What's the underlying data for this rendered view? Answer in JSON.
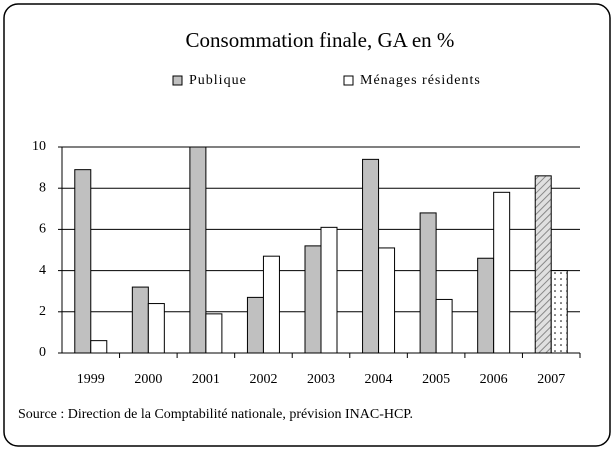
{
  "chart_data": {
    "type": "bar",
    "title": "Consommation finale, GA en %",
    "categories": [
      "1999",
      "2000",
      "2001",
      "2002",
      "2003",
      "2004",
      "2005",
      "2006",
      "2007"
    ],
    "series": [
      {
        "name": "Publique",
        "color": "#c0c0c0",
        "values": [
          8.9,
          3.2,
          10.0,
          2.7,
          5.2,
          9.4,
          6.8,
          4.6,
          8.6
        ]
      },
      {
        "name": "Ménages résidents",
        "color": "#ffffff",
        "values": [
          0.6,
          2.4,
          1.9,
          4.7,
          6.1,
          5.1,
          2.6,
          7.8,
          4.0
        ]
      }
    ],
    "hatched": [
      "2007"
    ],
    "ylim": [
      0,
      10
    ],
    "yticks": [
      0,
      2,
      4,
      6,
      8,
      10
    ],
    "grid": true,
    "legend": "top",
    "source": "Source : Direction de la Comptabilité nationale, prévision INAC-HCP."
  }
}
